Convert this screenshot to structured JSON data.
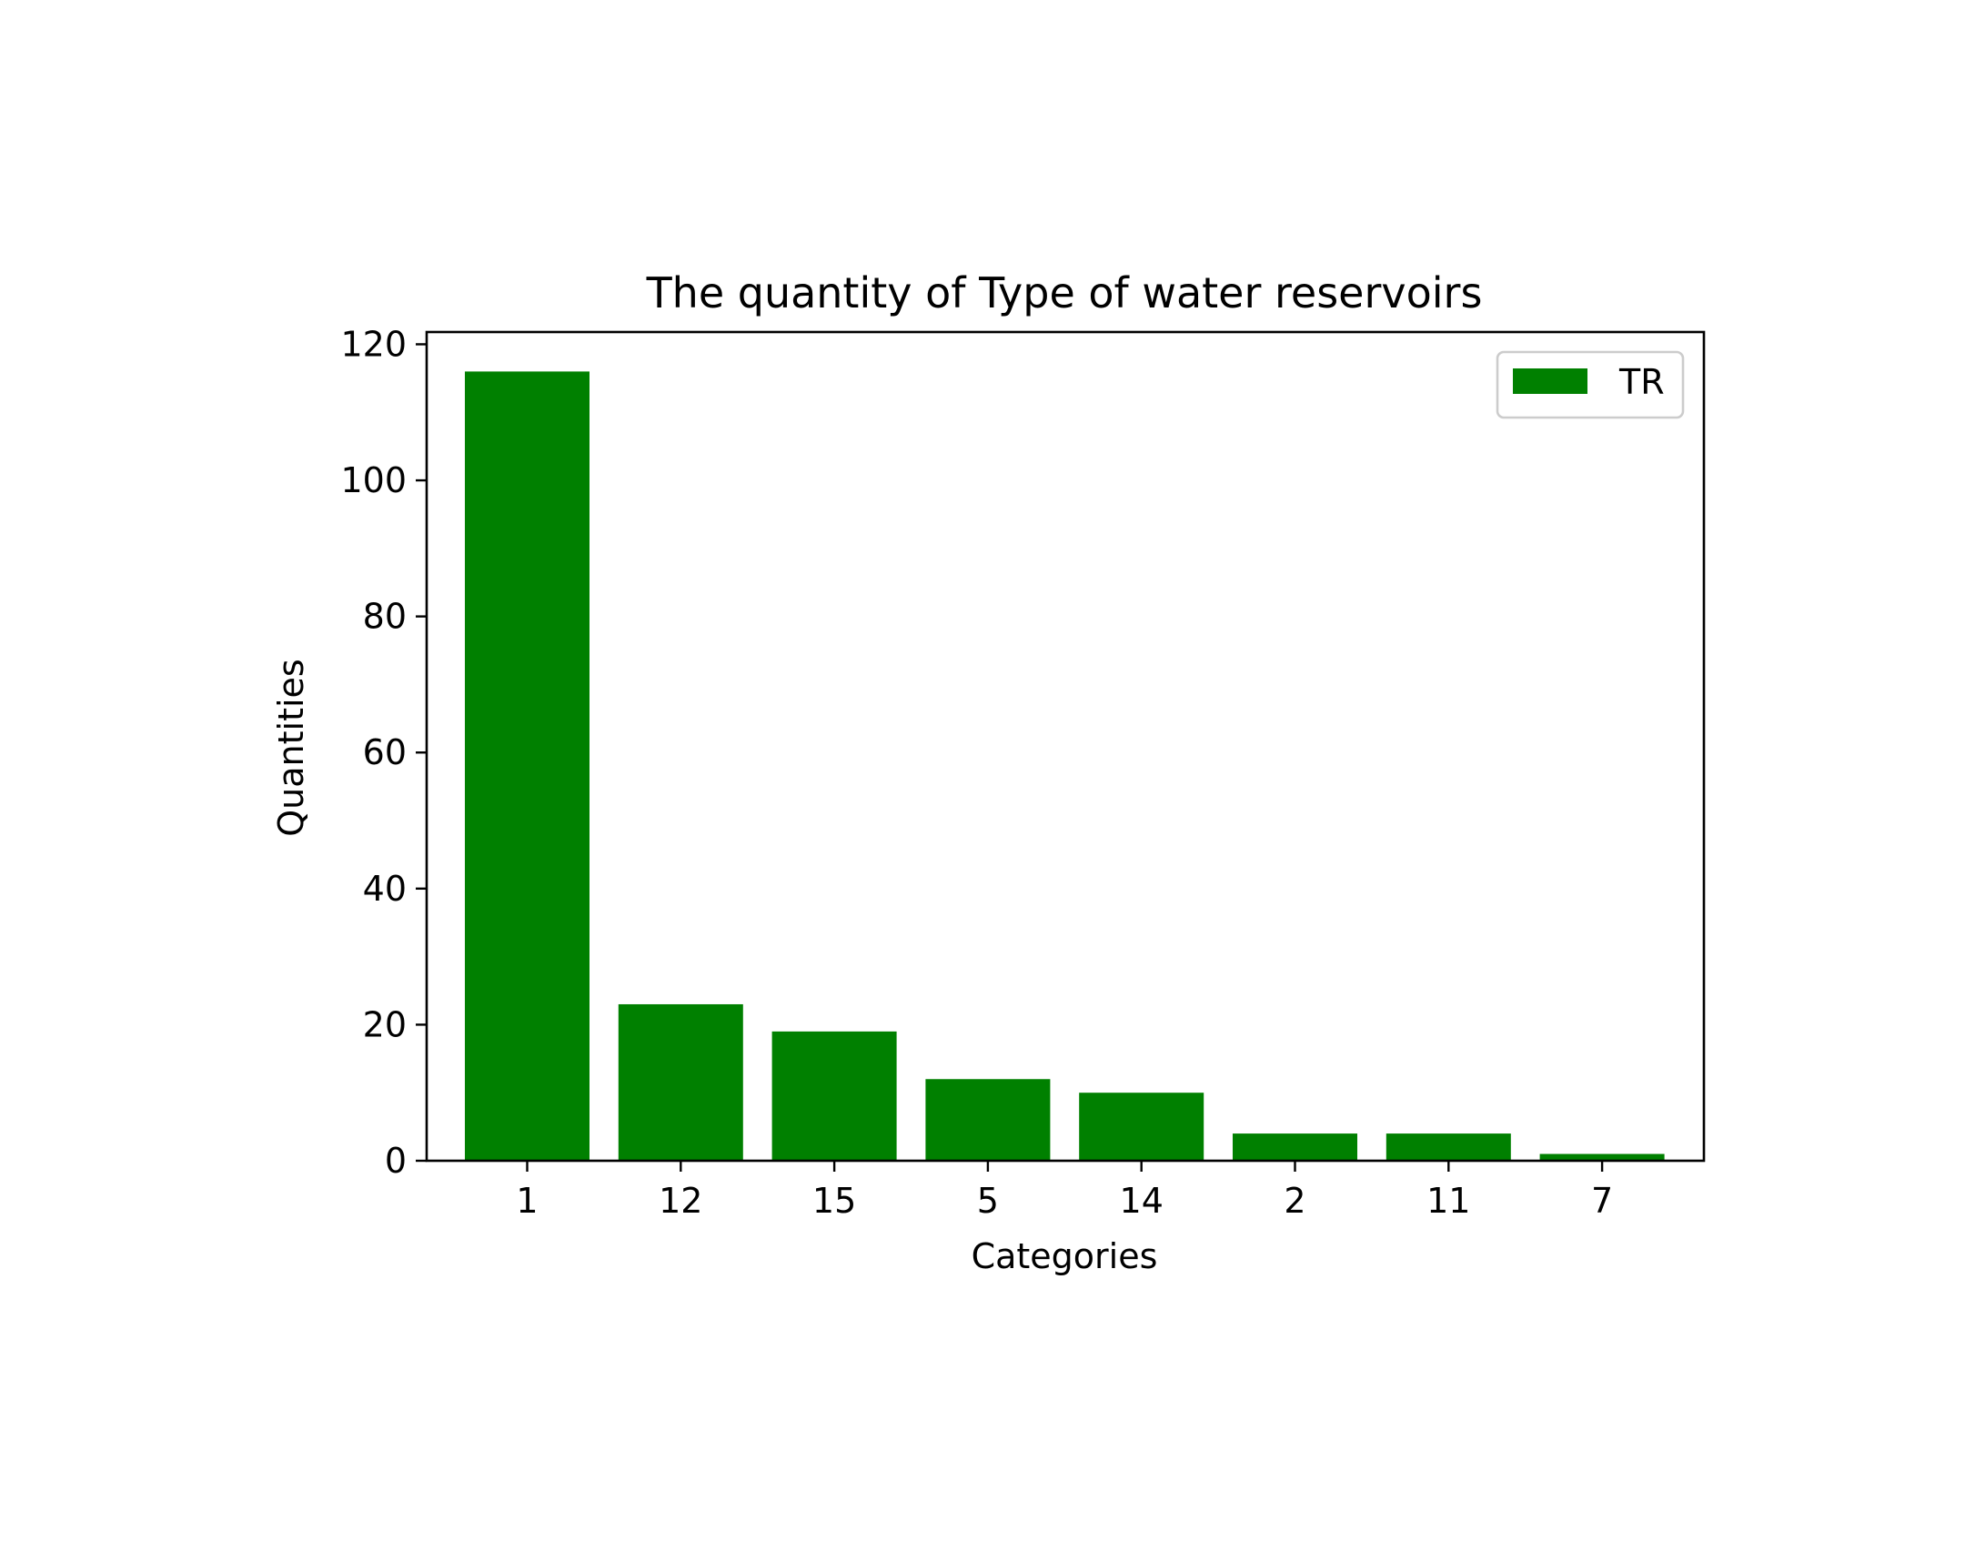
{
  "chart_data": {
    "type": "bar",
    "title": "The quantity of Type of water reservoirs",
    "xlabel": "Categories",
    "ylabel": "Quantities",
    "categories": [
      "1",
      "12",
      "15",
      "5",
      "14",
      "2",
      "11",
      "7"
    ],
    "series": [
      {
        "name": "TR",
        "values": [
          116,
          23,
          19,
          12,
          10,
          4,
          4,
          1
        ],
        "color": "#008000"
      }
    ],
    "ylim": [
      0,
      121.8
    ],
    "yticks": [
      0,
      20,
      40,
      60,
      80,
      100,
      120
    ],
    "grid": false,
    "legend_position": "top-right"
  }
}
